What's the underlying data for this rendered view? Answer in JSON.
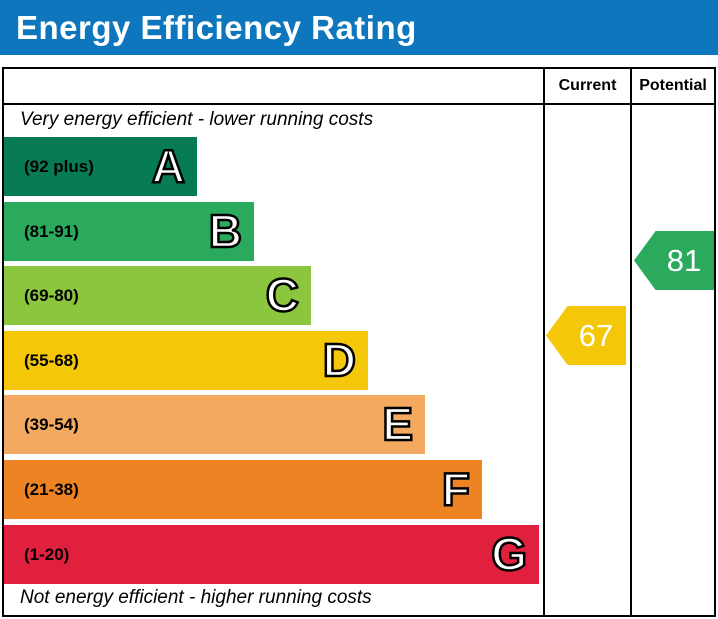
{
  "title": "Energy Efficiency Rating",
  "table": {
    "current_header": "Current",
    "potential_header": "Potential"
  },
  "notes": {
    "top": "Very energy efficient - lower running costs",
    "bottom": "Not energy efficient - higher running costs"
  },
  "colors": {
    "titlebar_blue": "#0D76BC",
    "band_a": "#077C53",
    "band_b": "#2BAA5D",
    "band_c": "#8CC63E",
    "band_d": "#F4C708",
    "band_e": "#F3A95F",
    "band_f": "#EE8324",
    "band_g": "#E1203E"
  },
  "chart_data": {
    "type": "bar",
    "title": "Energy Efficiency Rating",
    "bands": [
      {
        "letter": "A",
        "label": "(92 plus)",
        "min": 92,
        "max": 100,
        "color": "#077C53"
      },
      {
        "letter": "B",
        "label": "(81-91)",
        "min": 81,
        "max": 91,
        "color": "#2BAA5D"
      },
      {
        "letter": "C",
        "label": "(69-80)",
        "min": 69,
        "max": 80,
        "color": "#8CC63E"
      },
      {
        "letter": "D",
        "label": "(55-68)",
        "min": 55,
        "max": 68,
        "color": "#F4C708"
      },
      {
        "letter": "E",
        "label": "(39-54)",
        "min": 39,
        "max": 54,
        "color": "#F3A95F"
      },
      {
        "letter": "F",
        "label": "(21-38)",
        "min": 21,
        "max": 38,
        "color": "#EE8324"
      },
      {
        "letter": "G",
        "label": "(1-20)",
        "min": 1,
        "max": 20,
        "color": "#E1203E"
      }
    ],
    "current": {
      "value": 67,
      "color": "#F4C708"
    },
    "potential": {
      "value": 81,
      "color": "#2BAA5D"
    }
  }
}
